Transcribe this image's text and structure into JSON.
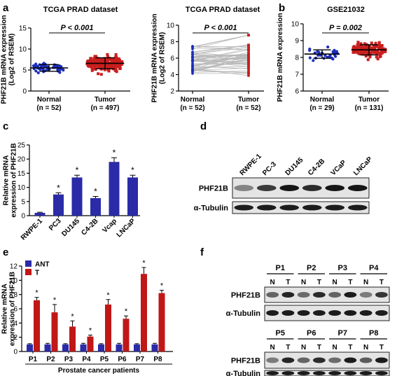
{
  "panel_letters": {
    "a": "a",
    "b": "b",
    "c": "c",
    "d": "d",
    "e": "e",
    "f": "f"
  },
  "colors": {
    "blue": "#2b2ba8",
    "red": "#c01717",
    "dot_blue": "#1c2dbb",
    "dot_red": "#c81e1e",
    "line_gray": "#b9b9b9"
  },
  "chart_data": [
    {
      "type": "scatter",
      "title": "TCGA PRAD dataset",
      "ylabel": "PHF21B mRNA expression (Log2 of RSEM)",
      "ylabel_lines": [
        "PHF21B mRNA expression",
        "(Log2 of RSEM)"
      ],
      "ylim": [
        0,
        15
      ],
      "yticks": [
        "0",
        "5",
        "10",
        "15"
      ],
      "pvalue": "P < 0.001",
      "categories": [
        {
          "name": "Normal",
          "n": "(n = 52)",
          "color": "blue",
          "mean": 5.5,
          "sd": 0.8,
          "range": [
            4.0,
            7.6
          ]
        },
        {
          "name": "Tumor",
          "n": "(n = 497)",
          "color": "red",
          "mean": 6.6,
          "sd": 1.3,
          "range": [
            2.5,
            13.0
          ]
        }
      ]
    },
    {
      "type": "line",
      "title": "TCGA PRAD dataset",
      "ylabel": "PHF21B mRNA expression (Log2 of RSEM)",
      "ylabel_lines": [
        "PHF21B mRNA expression",
        "(Log2 of RSEM)"
      ],
      "ylim": [
        2,
        10
      ],
      "yticks": [
        "2",
        "4",
        "6",
        "8",
        "10"
      ],
      "pvalue": "P < 0.001",
      "categories": [
        {
          "name": "Normal",
          "n": "(n = 52)",
          "color": "blue",
          "range": [
            4.0,
            7.6
          ]
        },
        {
          "name": "Tumor",
          "n": "(n = 52)",
          "color": "red",
          "range": [
            3.2,
            8.8
          ]
        }
      ]
    },
    {
      "type": "scatter",
      "title": "GSE21032",
      "ylabel": "PHF21B mRNA expression",
      "ylabel_lines": [
        "PHF21B mRNA expression"
      ],
      "ylim": [
        6,
        10
      ],
      "yticks": [
        "6",
        "7",
        "8",
        "9",
        "10"
      ],
      "pvalue": "P = 0.002",
      "categories": [
        {
          "name": "Normal",
          "n": "(n = 29)",
          "color": "blue",
          "mean": 8.2,
          "sd": 0.25,
          "range": [
            7.7,
            8.8
          ]
        },
        {
          "name": "Tumor",
          "n": "(n = 131)",
          "color": "red",
          "mean": 8.45,
          "sd": 0.3,
          "range": [
            7.7,
            9.5
          ]
        }
      ]
    },
    {
      "type": "bar",
      "ylabel": "Relative mRNA expression of PHF21B",
      "ylabel_lines": [
        "Relative mRNA",
        "expression of PHF21B"
      ],
      "ylim": [
        0,
        25
      ],
      "yticks": [
        "0",
        "5",
        "10",
        "15",
        "20",
        "25"
      ],
      "categories": [
        "RWPE-1",
        "PC3",
        "DU145",
        "C4-2B",
        "Vcap",
        "LNCaP"
      ],
      "values": [
        1.0,
        7.5,
        13.5,
        6.2,
        19.0,
        13.5
      ],
      "errors": [
        0.2,
        0.6,
        0.8,
        0.6,
        1.5,
        0.8
      ],
      "significance": [
        "",
        "*",
        "*",
        "*",
        "*",
        "*"
      ]
    },
    {
      "type": "bar",
      "ylabel": "Relative mRNA expression of PHF21B",
      "ylabel_lines": [
        "Relative mRNA",
        "expression of PHF21B"
      ],
      "xlabel": "Prostate cancer patients",
      "ylim": [
        0,
        12
      ],
      "yticks": [
        "0",
        "2",
        "4",
        "6",
        "8",
        "10",
        "12"
      ],
      "categories": [
        "P1",
        "P2",
        "P3",
        "P4",
        "P5",
        "P6",
        "P7",
        "P8"
      ],
      "legend": [
        "ANT",
        "T"
      ],
      "series": [
        {
          "name": "ANT",
          "color": "blue",
          "values": [
            1,
            1,
            1,
            1,
            1,
            1,
            1,
            1
          ],
          "errors": [
            0.1,
            0.15,
            0.1,
            0.15,
            0.1,
            0.15,
            0.1,
            0.15
          ]
        },
        {
          "name": "T",
          "color": "red",
          "values": [
            7.2,
            5.5,
            3.5,
            2.1,
            6.6,
            4.6,
            10.9,
            8.2
          ],
          "errors": [
            0.4,
            1.1,
            0.8,
            0.2,
            0.7,
            0.4,
            0.9,
            0.4
          ]
        }
      ],
      "significance": [
        "*",
        "*",
        "*",
        "*",
        "*",
        "*",
        "*",
        "*"
      ]
    }
  ],
  "blot_d": {
    "lanes": [
      "RWPE-1",
      "PC-3",
      "DU145",
      "C4-2B",
      "VCaP",
      "LNCaP"
    ],
    "rows": [
      {
        "label": "PHF21B",
        "intensity": [
          0.25,
          0.7,
          0.95,
          0.8,
          0.95,
          0.95
        ]
      },
      {
        "label": "α-Tubulin",
        "intensity": [
          0.9,
          0.9,
          0.9,
          0.9,
          0.9,
          0.9
        ]
      }
    ]
  },
  "blot_f": {
    "groups": [
      {
        "patients": [
          "P1",
          "P2",
          "P3",
          "P4"
        ],
        "lanes": [
          "N",
          "T",
          "N",
          "T",
          "N",
          "T",
          "N",
          "T"
        ],
        "rows": [
          {
            "label": "PHF21B",
            "intensity": [
              0.45,
              0.85,
              0.4,
              0.8,
              0.45,
              0.9,
              0.3,
              0.75
            ]
          },
          {
            "label": "α-Tubulin",
            "intensity": [
              0.9,
              0.9,
              0.9,
              0.9,
              0.9,
              0.9,
              0.9,
              0.9
            ]
          }
        ]
      },
      {
        "patients": [
          "P5",
          "P6",
          "P7",
          "P8"
        ],
        "lanes": [
          "N",
          "T",
          "N",
          "T",
          "N",
          "T",
          "N",
          "T"
        ],
        "rows": [
          {
            "label": "PHF21B",
            "intensity": [
              0.3,
              0.85,
              0.45,
              0.8,
              0.4,
              0.9,
              0.5,
              0.9
            ]
          },
          {
            "label": "α-Tubulin",
            "intensity": [
              0.9,
              0.9,
              0.9,
              0.9,
              0.9,
              0.9,
              0.9,
              0.9
            ]
          }
        ]
      }
    ]
  }
}
